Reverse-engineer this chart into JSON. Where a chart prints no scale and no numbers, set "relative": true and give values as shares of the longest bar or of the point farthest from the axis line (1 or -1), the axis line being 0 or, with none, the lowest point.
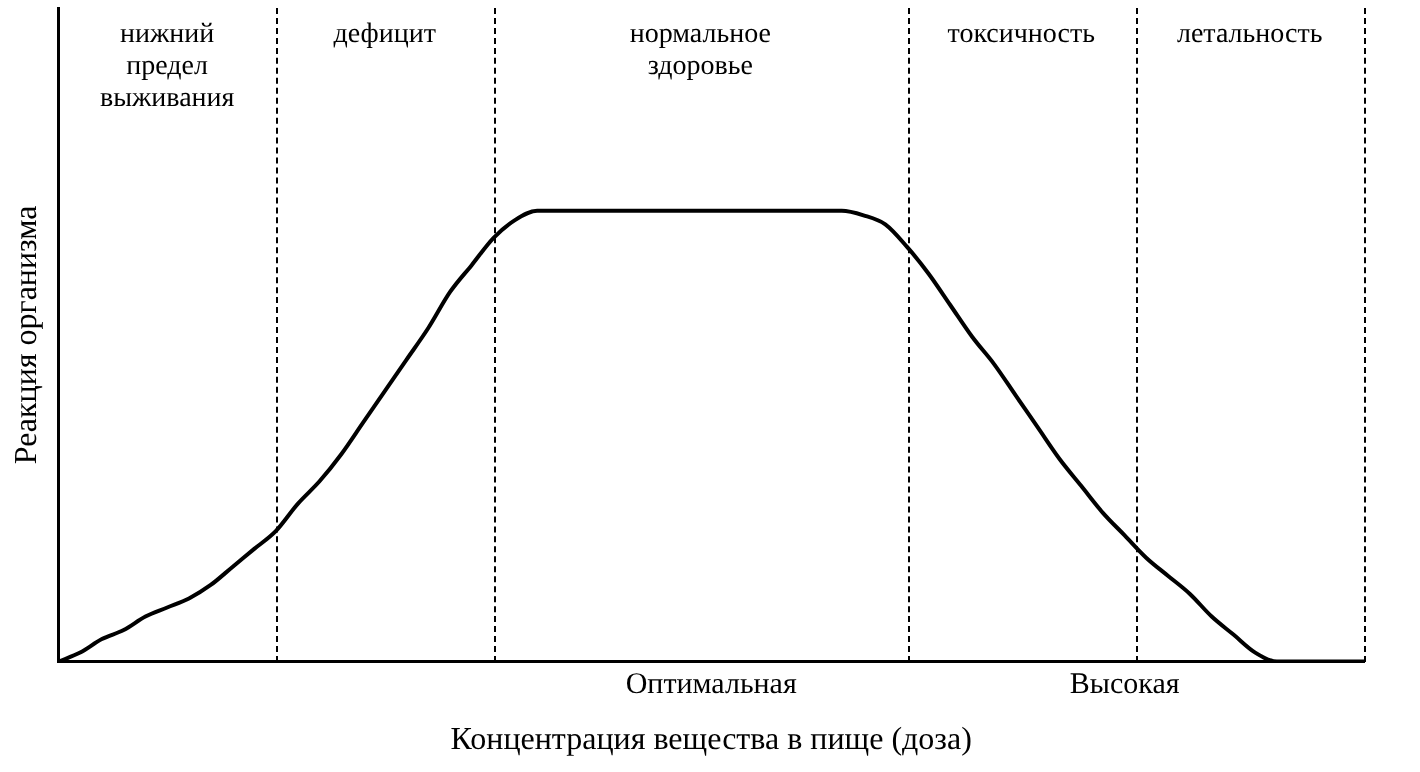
{
  "chart_data": {
    "type": "line",
    "xlabel": "Концентрация вещества в пище (доза)",
    "ylabel": "Реакция организма",
    "relative": true,
    "categories": [
      null,
      null,
      null,
      null,
      null,
      null,
      null,
      null,
      null,
      null,
      null,
      null,
      null,
      null,
      null,
      null,
      null,
      null,
      null,
      null,
      null,
      null,
      null,
      null,
      null,
      null,
      null,
      null,
      null,
      null,
      "Оптимальная",
      null,
      null,
      null,
      null,
      null,
      null,
      null,
      null,
      null,
      null,
      null,
      null,
      null,
      null,
      null,
      null,
      null,
      null,
      "Высокая",
      null,
      null,
      null,
      null,
      null,
      null,
      null,
      null,
      null,
      null,
      null
    ],
    "series": [
      {
        "color": "#000000",
        "values": [
          0,
          0.02,
          0.05,
          0.07,
          0.1,
          0.12,
          0.14,
          0.17,
          0.21,
          0.25,
          0.29,
          0.35,
          0.4,
          0.46,
          0.53,
          0.6,
          0.67,
          0.74,
          0.82,
          0.88,
          0.94,
          0.98,
          1,
          1,
          1,
          1,
          1,
          1,
          1,
          1,
          1,
          1,
          1,
          1,
          1,
          1,
          1,
          0.99,
          0.97,
          0.92,
          0.86,
          0.79,
          0.72,
          0.66,
          0.59,
          0.52,
          0.45,
          0.39,
          0.33,
          0.28,
          0.23,
          0.19,
          0.15,
          0.1,
          0.06,
          0.02,
          0,
          0,
          0,
          0,
          0
        ]
      }
    ],
    "annotations": [
      "нижний предел выживания",
      "дефицит",
      "нормальное здоровье",
      "токсичность",
      "летальность"
    ],
    "grid": false,
    "legend": false,
    "marker": "none",
    "line_style": "solid"
  }
}
